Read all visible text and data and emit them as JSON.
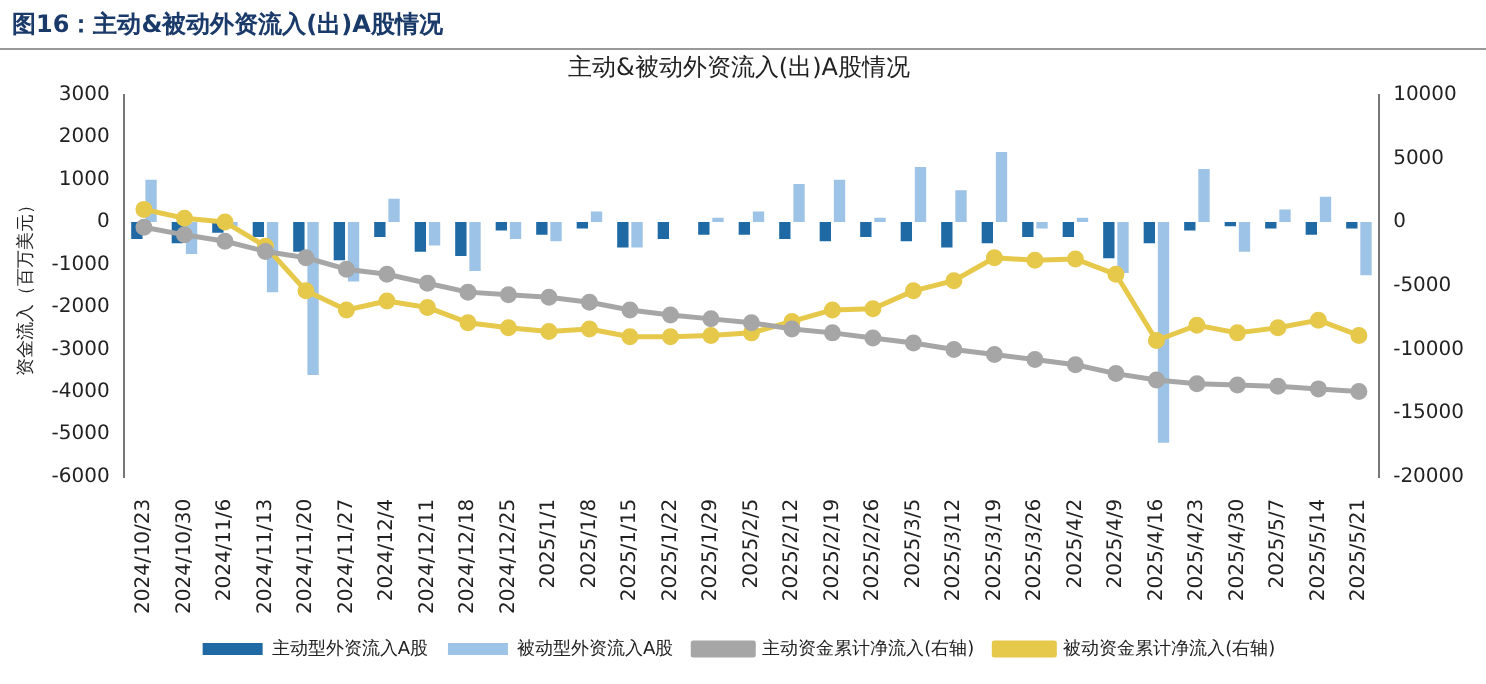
{
  "chart_data": {
    "type": "bar",
    "title": "图16：主动&被动外资流入(出)A股情况",
    "subtitle": "主动&被动外资流入(出)A股情况",
    "ylabel": "资金流入（百万美元）",
    "categories": [
      "2024/10/23",
      "2024/10/30",
      "2024/11/6",
      "2024/11/13",
      "2024/11/20",
      "2024/11/27",
      "2024/12/4",
      "2024/12/11",
      "2024/12/18",
      "2024/12/25",
      "2025/1/1",
      "2025/1/8",
      "2025/1/15",
      "2025/1/22",
      "2025/1/29",
      "2025/2/5",
      "2025/2/12",
      "2025/2/19",
      "2025/2/26",
      "2025/3/5",
      "2025/3/12",
      "2025/3/19",
      "2025/3/26",
      "2025/4/2",
      "2025/4/9",
      "2025/4/16",
      "2025/4/23",
      "2025/4/30",
      "2025/5/7",
      "2025/5/14",
      "2025/5/21"
    ],
    "series": [
      {
        "name": "主动型外资流入A股",
        "color": "#1f6aa5",
        "values": [
          -400,
          -500,
          -250,
          -350,
          -700,
          -900,
          -350,
          -700,
          -800,
          -200,
          -300,
          -150,
          -600,
          -400,
          -300,
          -300,
          -400,
          -450,
          -350,
          -450,
          -600,
          -500,
          -350,
          -350,
          -850,
          -500,
          -200,
          -100,
          -150,
          -300,
          -150
        ]
      },
      {
        "name": "被动型外资流入A股",
        "color": "#9dc3e6",
        "values": [
          1000,
          -750,
          -100,
          -1650,
          -3600,
          -1400,
          550,
          -550,
          -1150,
          -400,
          -450,
          250,
          -600,
          0,
          100,
          250,
          900,
          1000,
          100,
          1300,
          750,
          1650,
          -150,
          100,
          -1200,
          -5200,
          1250,
          -700,
          300,
          600,
          -1250
        ]
      },
      {
        "name": "主动资金累计净流入(右轴)",
        "type": "line",
        "axis": "y2",
        "color": "#a6a6a6",
        "values": [
          -400,
          -1000,
          -1500,
          -2300,
          -2800,
          -3700,
          -4100,
          -4800,
          -5500,
          -5700,
          -5900,
          -6300,
          -6900,
          -7300,
          -7600,
          -7900,
          -8400,
          -8700,
          -9100,
          -9500,
          -10000,
          -10400,
          -10800,
          -11200,
          -11900,
          -12400,
          -12700,
          -12800,
          -12900,
          -13100,
          -13300
        ]
      },
      {
        "name": "被动资金累计净流入(右轴)",
        "type": "line",
        "axis": "y2",
        "color": "#e6c84a",
        "values": [
          1000,
          300,
          0,
          -1900,
          -5400,
          -6900,
          -6200,
          -6700,
          -7900,
          -8300,
          -8600,
          -8400,
          -9000,
          -9000,
          -8900,
          -8700,
          -7800,
          -6900,
          -6800,
          -5400,
          -4600,
          -2800,
          -3000,
          -2900,
          -4100,
          -9300,
          -8100,
          -8700,
          -8300,
          -7700,
          -8900
        ]
      }
    ],
    "ylim": [
      -6000,
      3000
    ],
    "yticks": [
      -6000,
      -5000,
      -4000,
      -3000,
      -2000,
      -1000,
      0,
      1000,
      2000,
      3000
    ],
    "y2lim": [
      -20000,
      10000
    ],
    "y2ticks": [
      -20000,
      -15000,
      -10000,
      -5000,
      0,
      5000,
      10000
    ],
    "grid": false,
    "legend": "bottom",
    "marker": "circle"
  }
}
